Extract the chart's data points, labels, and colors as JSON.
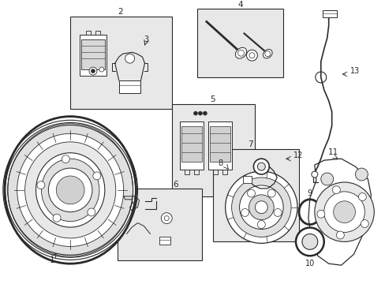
{
  "bg_color": "#ffffff",
  "line_color": "#2a2a2a",
  "box_fill": "#e8e8e8",
  "figsize": [
    4.89,
    3.6
  ],
  "dpi": 100
}
